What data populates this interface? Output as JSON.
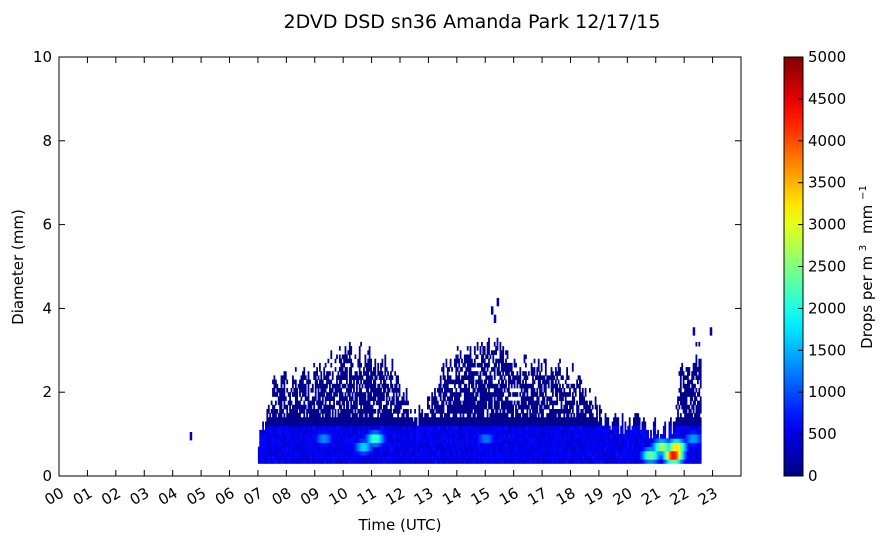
{
  "chart_data": {
    "type": "heatmap",
    "title": "2DVD DSD sn36 Amanda Park 12/17/15",
    "xlabel": "Time (UTC)",
    "ylabel": "Diameter (mm)",
    "colorbar_label": "Drops per m",
    "colorbar_label_sup": "3",
    "colorbar_label_unit": "mm",
    "colorbar_label_unit_sup": "−1",
    "xlim": [
      0,
      24
    ],
    "ylim": [
      0,
      10
    ],
    "clim": [
      0,
      5000
    ],
    "colormap": "jet",
    "xticks": [
      "00",
      "01",
      "02",
      "03",
      "04",
      "05",
      "06",
      "07",
      "08",
      "09",
      "10",
      "11",
      "12",
      "13",
      "14",
      "15",
      "16",
      "17",
      "18",
      "19",
      "20",
      "21",
      "22",
      "23"
    ],
    "yticks": [
      "0",
      "2",
      "4",
      "6",
      "8",
      "10"
    ],
    "cbar_ticks": [
      "0",
      "500",
      "1000",
      "1500",
      "2000",
      "2500",
      "3000",
      "3500",
      "4000",
      "4500",
      "5000"
    ],
    "bin_hours": 0.05,
    "diameter_bins": [
      0.25,
      0.45,
      0.65,
      0.85,
      1.05
    ],
    "envelope": {
      "description_free": true,
      "hours": [
        7.0,
        7.3,
        7.5,
        8.0,
        8.5,
        9.0,
        9.5,
        10.0,
        10.5,
        11.0,
        11.5,
        12.0,
        12.3,
        12.6,
        13.0,
        13.3,
        13.6,
        14.0,
        14.5,
        15.0,
        15.5,
        16.0,
        16.5,
        17.0,
        17.5,
        18.0,
        18.5,
        19.0,
        19.3,
        19.6,
        20.0,
        20.5,
        21.0,
        21.4,
        21.6,
        21.8,
        22.0,
        22.3,
        22.6
      ],
      "top_mm": [
        0.9,
        1.5,
        2.0,
        2.3,
        2.4,
        2.5,
        2.7,
        2.9,
        2.9,
        2.8,
        2.6,
        2.2,
        1.6,
        1.4,
        1.8,
        2.0,
        2.6,
        2.8,
        3.0,
        3.1,
        2.9,
        2.7,
        2.6,
        2.6,
        2.5,
        2.4,
        2.0,
        1.5,
        1.3,
        1.2,
        1.2,
        1.2,
        1.1,
        1.0,
        1.2,
        2.4,
        2.6,
        2.8,
        2.9
      ]
    },
    "isolated_points": [
      {
        "hour": 4.6,
        "diameter": 0.85
      },
      {
        "hour": 15.2,
        "diameter": 3.85
      },
      {
        "hour": 15.3,
        "diameter": 3.65
      },
      {
        "hour": 15.4,
        "diameter": 4.05
      },
      {
        "hour": 22.3,
        "diameter": 3.35
      },
      {
        "hour": 22.9,
        "diameter": 3.35
      }
    ],
    "hotspots": [
      {
        "hour": 11.1,
        "diameter": 0.85,
        "value": 2300
      },
      {
        "hour": 10.7,
        "diameter": 0.65,
        "value": 1800
      },
      {
        "hour": 9.3,
        "diameter": 0.85,
        "value": 1400
      },
      {
        "hour": 15.0,
        "diameter": 0.85,
        "value": 1300
      },
      {
        "hour": 20.8,
        "diameter": 0.45,
        "value": 2600
      },
      {
        "hour": 21.2,
        "diameter": 0.65,
        "value": 2900
      },
      {
        "hour": 21.6,
        "diameter": 0.45,
        "value": 4700
      },
      {
        "hour": 21.7,
        "diameter": 0.65,
        "value": 3500
      },
      {
        "hour": 22.3,
        "diameter": 0.85,
        "value": 1500
      }
    ]
  }
}
